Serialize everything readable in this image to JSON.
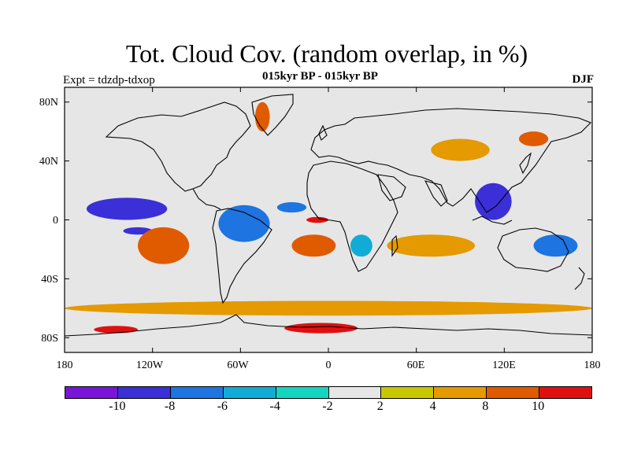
{
  "header": {
    "title": "Tot. Cloud Cov. (random overlap, in %)",
    "subtitle": "015kyr BP - 015kyr BP",
    "expt": "Expt = tdzdp-tdxop",
    "season": "DJF"
  },
  "axes": {
    "lat_labels": [
      "80N",
      "40N",
      "0",
      "40S",
      "80S"
    ],
    "lon_labels": [
      "180",
      "120W",
      "60W",
      "0",
      "60E",
      "120E",
      "180"
    ],
    "lat_values": [
      80,
      40,
      0,
      -40,
      -80
    ],
    "lon_values": [
      -180,
      -120,
      -60,
      0,
      60,
      120,
      180
    ],
    "lat_range": [
      -90,
      90
    ],
    "lon_range": [
      -180,
      180
    ]
  },
  "colorbar": {
    "colors": [
      "#7a14d8",
      "#3b2fd8",
      "#1e74e0",
      "#11acd6",
      "#14d6c0",
      "#e6e6e6",
      "#c8c800",
      "#e49a00",
      "#e05a00",
      "#e01010"
    ],
    "labels": [
      "-10",
      "-8",
      "-6",
      "-4",
      "-2",
      "2",
      "4",
      "8",
      "10"
    ],
    "label_boundaries": [
      1,
      2,
      3,
      4,
      5,
      6,
      7,
      8,
      9
    ]
  },
  "chart_data": {
    "type": "heatmap",
    "variable": "Tot. Cloud Cov. (random overlap, in %)",
    "levels": [
      -10,
      -8,
      -6,
      -4,
      -2,
      2,
      4,
      8,
      10
    ],
    "regions": [
      {
        "lon": [
          -165,
          -110
        ],
        "lat": [
          0,
          15
        ],
        "value": -10
      },
      {
        "lon": [
          -140,
          -120
        ],
        "lat": [
          -10,
          -5
        ],
        "value": -10
      },
      {
        "lon": [
          -75,
          -40
        ],
        "lat": [
          -15,
          10
        ],
        "value": -8
      },
      {
        "lon": [
          -35,
          -15
        ],
        "lat": [
          5,
          12
        ],
        "value": -8
      },
      {
        "lon": [
          100,
          125
        ],
        "lat": [
          0,
          25
        ],
        "value": -10
      },
      {
        "lon": [
          140,
          170
        ],
        "lat": [
          -25,
          -10
        ],
        "value": -8
      },
      {
        "lon": [
          15,
          30
        ],
        "lat": [
          -25,
          -10
        ],
        "value": -6
      },
      {
        "lon": [
          -130,
          -95
        ],
        "lat": [
          -30,
          -5
        ],
        "value": 8
      },
      {
        "lon": [
          -25,
          5
        ],
        "lat": [
          -25,
          -10
        ],
        "value": 8
      },
      {
        "lon": [
          -15,
          0
        ],
        "lat": [
          -2,
          2
        ],
        "value": 10
      },
      {
        "lon": [
          -30,
          20
        ],
        "lat": [
          -77,
          -70
        ],
        "value": 10
      },
      {
        "lon": [
          -160,
          -130
        ],
        "lat": [
          -77,
          -72
        ],
        "value": 10
      },
      {
        "lon": [
          70,
          110
        ],
        "lat": [
          40,
          55
        ],
        "value": 4
      },
      {
        "lon": [
          130,
          150
        ],
        "lat": [
          50,
          60
        ],
        "value": 8
      },
      {
        "lon": [
          -50,
          -40
        ],
        "lat": [
          60,
          80
        ],
        "value": 8
      },
      {
        "lon": [
          40,
          100
        ],
        "lat": [
          -25,
          -10
        ],
        "value": 4
      },
      {
        "lon": [
          -180,
          180
        ],
        "lat": [
          -65,
          -55
        ],
        "value": 4
      }
    ]
  }
}
